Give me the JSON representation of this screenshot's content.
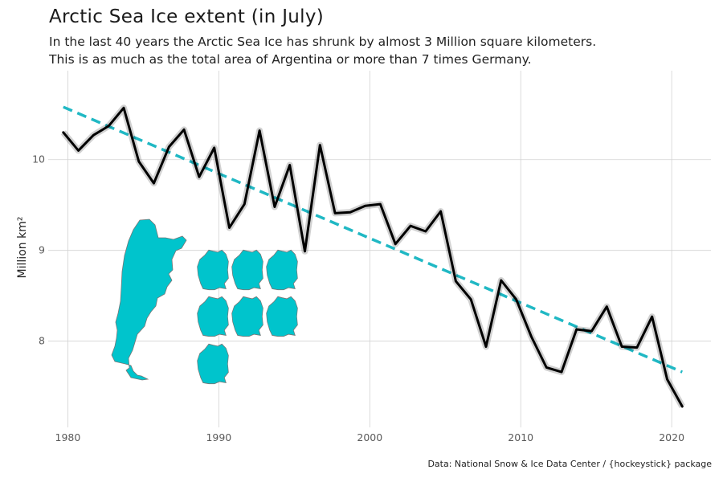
{
  "chart_data": {
    "type": "line",
    "title": "Arctic Sea Ice extent (in July)",
    "subtitle": [
      "In the last 40 years the Arctic Sea Ice has shrunk by almost 3 Million square kilometers.",
      "This is as much as the total area of Argentina or more than 7 times Germany."
    ],
    "caption": "Data: National Snow & Ice Data Center / {hockeystick} package",
    "ylabel": "Million km²",
    "xlabel": "",
    "xlim": [
      1978.7,
      2022.6
    ],
    "ylim": [
      7.05,
      10.98
    ],
    "xticks": [
      "1980",
      "1990",
      "2000",
      "2010",
      "2020"
    ],
    "yticks": [
      "8",
      "9",
      "10"
    ],
    "grid": true,
    "series": [
      {
        "color": "#000000",
        "x": [
          1979.7,
          1980.7,
          1981.7,
          1982.7,
          1983.7,
          1984.7,
          1985.7,
          1986.7,
          1987.7,
          1988.7,
          1989.7,
          1990.7,
          1991.7,
          1992.7,
          1993.7,
          1994.7,
          1995.7,
          1996.7,
          1997.7,
          1998.7,
          1999.7,
          2000.7,
          2001.7,
          2002.7,
          2003.7,
          2004.7,
          2005.7,
          2006.7,
          2007.7,
          2008.7,
          2009.7,
          2010.7,
          2011.7,
          2012.7,
          2013.7,
          2014.7,
          2015.7,
          2016.7,
          2017.7,
          2018.7,
          2019.7,
          2020.7
        ],
        "values": [
          10.3,
          10.1,
          10.27,
          10.37,
          10.57,
          9.98,
          9.74,
          10.14,
          10.33,
          9.81,
          10.13,
          9.25,
          9.51,
          10.32,
          9.48,
          9.94,
          8.99,
          10.16,
          9.41,
          9.42,
          9.49,
          9.51,
          9.07,
          9.27,
          9.21,
          9.43,
          8.66,
          8.46,
          7.94,
          8.67,
          8.46,
          8.05,
          7.71,
          7.66,
          8.13,
          8.11,
          8.38,
          7.94,
          7.93,
          8.27,
          7.58,
          7.28
        ]
      },
      {
        "color": "#20b8c4",
        "style": "dashed",
        "x": [
          1979.7,
          2020.7
        ],
        "values": [
          10.58,
          7.66
        ]
      }
    ],
    "annotations": {
      "fill_color": "#00c4cc",
      "argentina_count": 1,
      "germany_count": 7
    }
  }
}
